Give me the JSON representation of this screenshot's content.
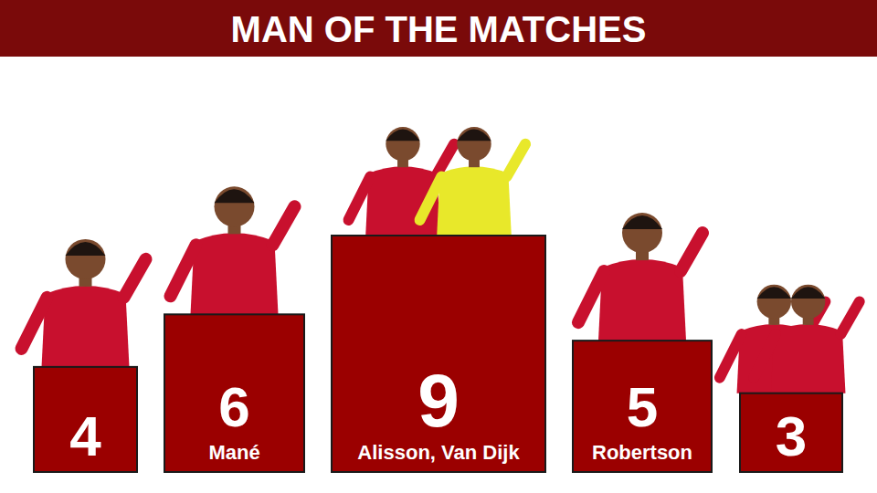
{
  "chart_data": {
    "type": "bar",
    "title": "MAN OF THE MATCHES",
    "categories": [
      null,
      "Mané",
      "Alisson, Van Dijk",
      "Robertson",
      null
    ],
    "values": [
      4,
      6,
      9,
      5,
      3
    ],
    "color": "#9b0000",
    "ylim": [
      0,
      9
    ],
    "data_labels": true,
    "tick_labels": false
  }
}
